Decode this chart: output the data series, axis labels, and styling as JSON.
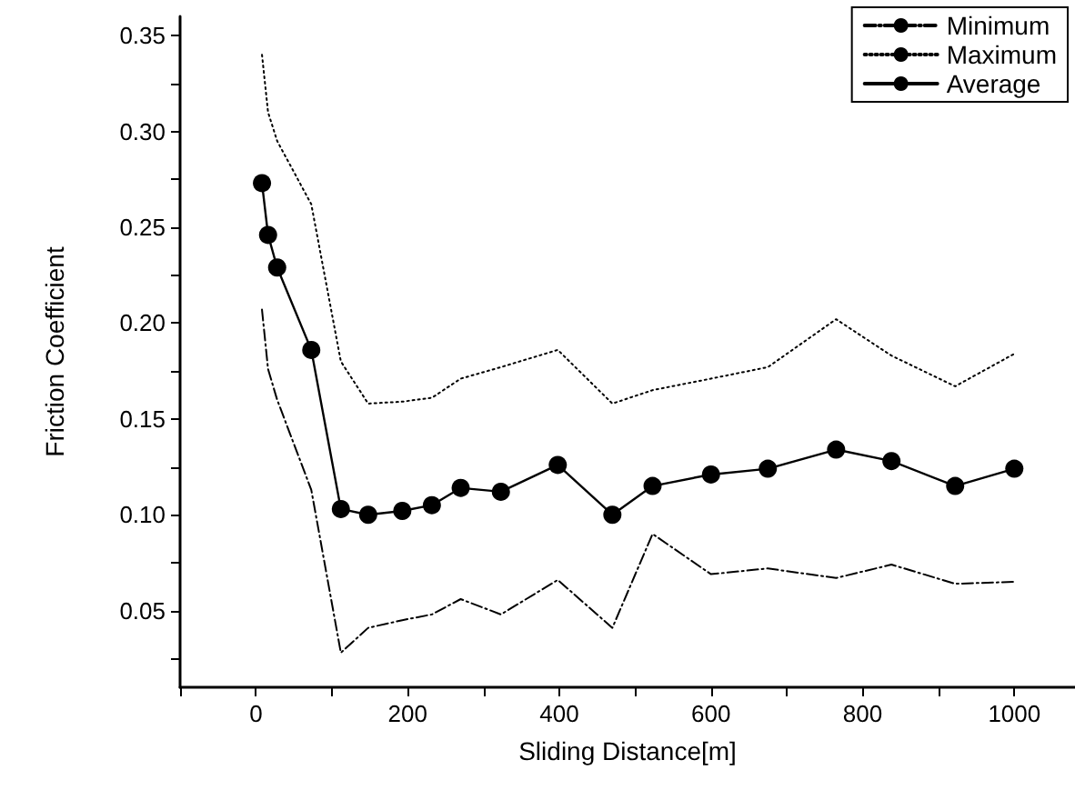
{
  "chart_data": {
    "type": "line",
    "xlabel": "Sliding Distance[m]",
    "ylabel": "Friction Coefficient",
    "x": [
      8,
      16,
      28,
      73,
      112,
      148,
      193,
      232,
      270,
      323,
      398,
      470,
      523,
      600,
      675,
      765,
      838,
      922,
      1000
    ],
    "series": [
      {
        "name": "Minimum",
        "color": "#000000",
        "line_style": "dashed",
        "marker": "none",
        "values": [
          0.207,
          0.176,
          0.16,
          0.113,
          0.028,
          0.041,
          0.045,
          0.048,
          0.056,
          0.048,
          0.066,
          0.041,
          0.09,
          0.069,
          0.072,
          0.067,
          0.074,
          0.064,
          0.065
        ]
      },
      {
        "name": "Maximum",
        "color": "#000000",
        "line_style": "dotted",
        "marker": "none",
        "values": [
          0.34,
          0.31,
          0.295,
          0.262,
          0.18,
          0.158,
          0.159,
          0.161,
          0.171,
          0.177,
          0.186,
          0.158,
          0.165,
          0.171,
          0.177,
          0.202,
          0.183,
          0.167,
          0.184
        ]
      },
      {
        "name": "Average",
        "color": "#000000",
        "line_style": "solid",
        "marker": "circle",
        "values": [
          0.273,
          0.246,
          0.229,
          0.186,
          0.103,
          0.1,
          0.102,
          0.105,
          0.114,
          0.112,
          0.126,
          0.1,
          0.115,
          0.121,
          0.124,
          0.134,
          0.128,
          0.115,
          0.124
        ]
      }
    ],
    "xlim": [
      -100,
      1080
    ],
    "xticks": [
      {
        "value": -100,
        "label": null
      },
      0,
      {
        "value": 100,
        "label": null
      },
      200,
      {
        "value": 300,
        "label": null
      },
      400,
      {
        "value": 500,
        "label": null
      },
      600,
      {
        "value": 700,
        "label": null
      },
      800,
      {
        "value": 900,
        "label": null
      },
      1000
    ],
    "ylim": [
      0.01,
      0.36
    ],
    "yticks": [
      {
        "value": 0.025,
        "label": null
      },
      {
        "value": 0.05,
        "label": "0.05"
      },
      {
        "value": 0.075,
        "label": null
      },
      {
        "value": 0.1,
        "label": "0.10"
      },
      {
        "value": 0.125,
        "label": null
      },
      {
        "value": 0.15,
        "label": "0.15"
      },
      {
        "value": 0.175,
        "label": null
      },
      {
        "value": 0.2,
        "label": "0.20"
      },
      {
        "value": 0.225,
        "label": null
      },
      {
        "value": 0.25,
        "label": "0.25"
      },
      {
        "value": 0.275,
        "label": null
      },
      {
        "value": 0.3,
        "label": "0.30"
      },
      {
        "value": 0.325,
        "label": null
      },
      {
        "value": 0.35,
        "label": "0.35"
      }
    ],
    "grid": false,
    "legend": "top right"
  }
}
